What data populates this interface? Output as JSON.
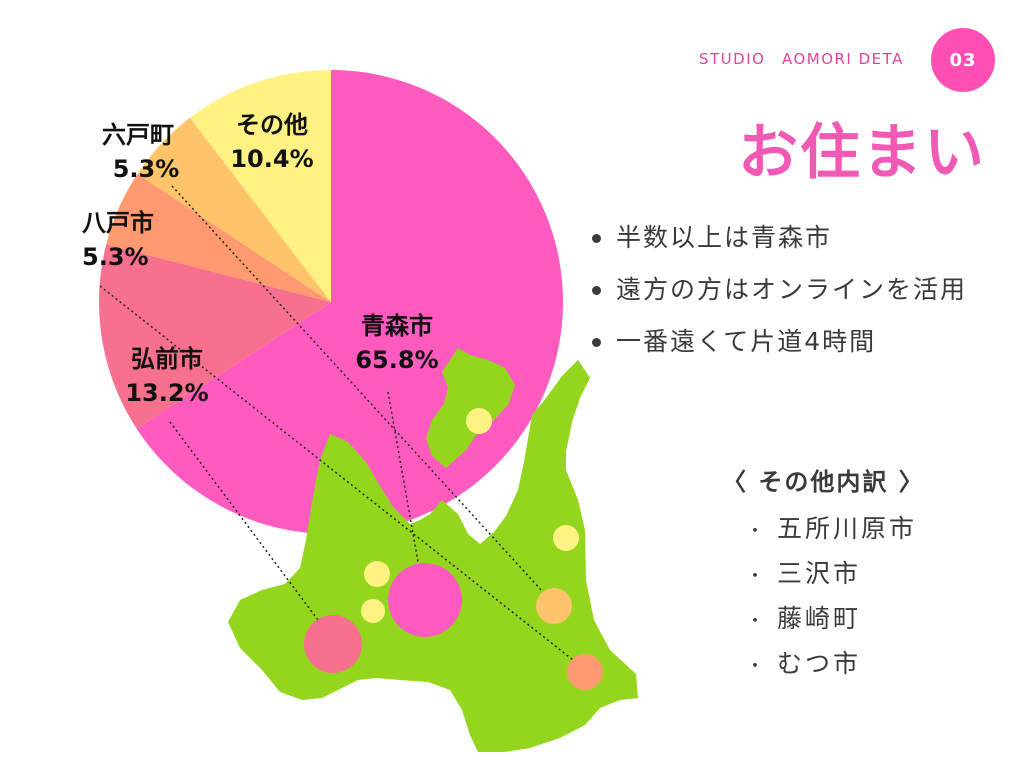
{
  "header": {
    "studio": "STUDIO　AOMORI DETA",
    "page_number": "03",
    "title": "お住まい"
  },
  "bullets": [
    "半数以上は青森市",
    "遠方の方はオンラインを活用",
    "一番遠くて片道4時間"
  ],
  "breakdown": {
    "title": "〈 その他内訳 〉",
    "bullet_glyph": "・",
    "items": [
      "五所川原市",
      "三沢市",
      "藤崎町",
      "むつ市"
    ]
  },
  "colors": {
    "accent": "#f05ab4",
    "map_green": "#94d61e",
    "aomori": "#ff5bbf",
    "hirosaki": "#f7718e",
    "hachinohe": "#ff9970",
    "rokunohe": "#ffc36a",
    "other": "#fff282"
  },
  "chart_data": {
    "type": "pie",
    "slices": [
      {
        "name": "青森市",
        "label": "青森市",
        "percent_label": "65.8%",
        "value": 65.8,
        "color": "#ff5bbf"
      },
      {
        "name": "弘前市",
        "label": "弘前市",
        "percent_label": "13.2%",
        "value": 13.2,
        "color": "#f7718e"
      },
      {
        "name": "八戸市",
        "label": "八戸市",
        "percent_label": "5.3%",
        "value": 5.3,
        "color": "#ff9970"
      },
      {
        "name": "六戸町",
        "label": "六戸町",
        "percent_label": "5.3%",
        "value": 5.3,
        "color": "#ffc36a"
      },
      {
        "name": "その他",
        "label": "その他",
        "percent_label": "10.4%",
        "value": 10.4,
        "color": "#fff282"
      }
    ]
  }
}
